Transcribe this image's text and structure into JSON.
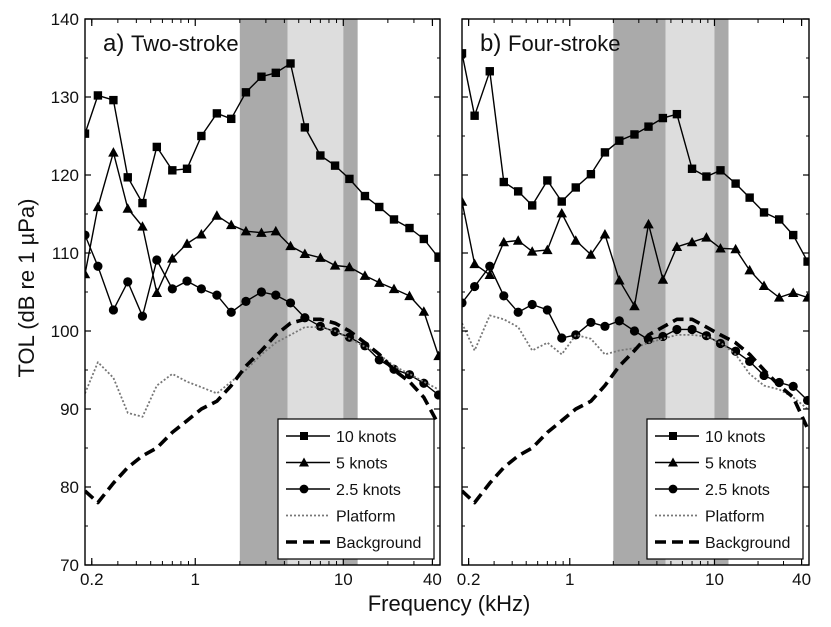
{
  "figure": {
    "ylabel": "TOL (dB re 1 µPa)",
    "xlabel": "Frequency (kHz)"
  },
  "colors": {
    "band_dark": "#aaaaaa",
    "band_light": "#dddddd",
    "line": "#000000",
    "platform": "#777777"
  },
  "chart_data": [
    {
      "type": "line",
      "panel_label": "a)",
      "title": "Two-stroke",
      "xscale": "log",
      "xlim": [
        0.18,
        45
      ],
      "ylim": [
        70,
        140
      ],
      "xticks": [
        0.2,
        1,
        10,
        40
      ],
      "xtick_labels": [
        "0.2",
        "1",
        "10",
        "40"
      ],
      "yticks": [
        70,
        80,
        90,
        100,
        110,
        120,
        130,
        140
      ],
      "ytick_labels": [
        "70",
        "80",
        "90",
        "100",
        "110",
        "120",
        "130",
        "140"
      ],
      "bands": [
        {
          "x": [
            2,
            4.2
          ],
          "shade": "dark"
        },
        {
          "x": [
            4.2,
            10
          ],
          "shade": "light"
        },
        {
          "x": [
            10,
            12.5
          ],
          "shade": "dark"
        }
      ],
      "legend_position": "lower-right",
      "series": [
        {
          "name": "10 knots",
          "marker": "square",
          "style": "solid",
          "x": [
            0.18,
            0.22,
            0.28,
            0.35,
            0.44,
            0.55,
            0.7,
            0.88,
            1.1,
            1.4,
            1.75,
            2.2,
            2.8,
            3.5,
            4.4,
            5.5,
            7,
            8.8,
            11,
            14,
            17.5,
            22,
            28,
            35,
            44
          ],
          "y": [
            125.3,
            130.2,
            129.6,
            119.7,
            116.4,
            123.6,
            120.6,
            120.8,
            125,
            127.9,
            127.2,
            130.6,
            132.6,
            133.1,
            134.3,
            126.1,
            122.5,
            121.2,
            119.5,
            117.3,
            115.9,
            114.3,
            113.2,
            111.8,
            109.4
          ]
        },
        {
          "name": "5 knots",
          "marker": "triangle",
          "style": "solid",
          "x": [
            0.18,
            0.22,
            0.28,
            0.35,
            0.44,
            0.55,
            0.7,
            0.88,
            1.1,
            1.4,
            1.75,
            2.2,
            2.8,
            3.5,
            4.4,
            5.5,
            7,
            8.8,
            11,
            14,
            17.5,
            22,
            28,
            35,
            44
          ],
          "y": [
            107.3,
            115.9,
            122.9,
            115.7,
            113.4,
            104.9,
            109.3,
            111.2,
            112.4,
            114.8,
            113.6,
            112.8,
            112.6,
            112.8,
            110.9,
            109.9,
            109.4,
            108.4,
            108.2,
            107.1,
            106.2,
            105.4,
            104.5,
            102.5,
            96.8
          ]
        },
        {
          "name": "2.5 knots",
          "marker": "circle",
          "style": "solid",
          "x": [
            0.18,
            0.22,
            0.28,
            0.35,
            0.44,
            0.55,
            0.7,
            0.88,
            1.1,
            1.4,
            1.75,
            2.2,
            2.8,
            3.5,
            4.4,
            5.5,
            7,
            8.8,
            11,
            14,
            17.5,
            22,
            28,
            35,
            44
          ],
          "y": [
            112.3,
            108.3,
            102.7,
            106.3,
            101.9,
            109.1,
            105.4,
            106.4,
            105.4,
            104.6,
            102.4,
            103.8,
            105,
            104.6,
            103.6,
            101.7,
            100.6,
            99.9,
            99.2,
            98.1,
            96.3,
            95.1,
            94.4,
            93.3,
            91.8
          ]
        },
        {
          "name": "Platform",
          "marker": "none",
          "style": "dotted",
          "x": [
            0.18,
            0.22,
            0.28,
            0.35,
            0.44,
            0.55,
            0.7,
            0.88,
            1.1,
            1.4,
            1.75,
            2.2,
            2.8,
            3.5,
            4.4,
            5.5,
            7,
            8.8,
            11,
            14,
            17.5,
            22,
            28,
            35,
            44
          ],
          "y": [
            92,
            96,
            94,
            89.5,
            89,
            93,
            94.5,
            93.5,
            92.8,
            92,
            93.5,
            95,
            97,
            98.5,
            99.5,
            100.5,
            100.5,
            100,
            99,
            98,
            97,
            95.5,
            94.5,
            93.5,
            92.5
          ]
        },
        {
          "name": "Background",
          "marker": "none",
          "style": "dashed",
          "x": [
            0.18,
            0.22,
            0.28,
            0.35,
            0.44,
            0.55,
            0.7,
            0.88,
            1.1,
            1.4,
            1.75,
            2.2,
            2.8,
            3.5,
            4.4,
            5.5,
            7,
            8.8,
            11,
            14,
            17.5,
            22,
            28,
            35,
            44
          ],
          "y": [
            79.5,
            78,
            80.5,
            82.5,
            84,
            85,
            87,
            88.5,
            90,
            91,
            93,
            95.5,
            97.5,
            99.5,
            101,
            101.5,
            101.5,
            101,
            100,
            98.5,
            97,
            95,
            93.5,
            91.5,
            88
          ]
        }
      ]
    },
    {
      "type": "line",
      "panel_label": "b)",
      "title": "Four-stroke",
      "xscale": "log",
      "xlim": [
        0.18,
        45
      ],
      "ylim": [
        70,
        140
      ],
      "xticks": [
        0.2,
        1,
        10,
        40
      ],
      "xtick_labels": [
        "0.2",
        "1",
        "10",
        "40"
      ],
      "yticks": [
        70,
        80,
        90,
        100,
        110,
        120,
        130,
        140
      ],
      "ytick_labels": [],
      "bands": [
        {
          "x": [
            2,
            4.6
          ],
          "shade": "dark"
        },
        {
          "x": [
            4.6,
            10
          ],
          "shade": "light"
        },
        {
          "x": [
            10,
            12.5
          ],
          "shade": "dark"
        }
      ],
      "legend_position": "lower-right",
      "series": [
        {
          "name": "10 knots",
          "marker": "square",
          "style": "solid",
          "x": [
            0.18,
            0.22,
            0.28,
            0.35,
            0.44,
            0.55,
            0.7,
            0.88,
            1.1,
            1.4,
            1.75,
            2.2,
            2.8,
            3.5,
            4.4,
            5.5,
            7,
            8.8,
            11,
            14,
            17.5,
            22,
            28,
            35,
            44
          ],
          "y": [
            135.6,
            127.6,
            133.3,
            119.1,
            117.9,
            116.1,
            119.3,
            116.6,
            118.4,
            120.1,
            122.9,
            124.4,
            125.2,
            126.2,
            127.3,
            127.8,
            120.8,
            119.8,
            120.6,
            118.9,
            117.1,
            115.2,
            114.3,
            112.3,
            108.9
          ]
        },
        {
          "name": "5 knots",
          "marker": "triangle",
          "style": "solid",
          "x": [
            0.18,
            0.22,
            0.28,
            0.35,
            0.44,
            0.55,
            0.7,
            0.88,
            1.1,
            1.4,
            1.75,
            2.2,
            2.8,
            3.5,
            4.4,
            5.5,
            7,
            8.8,
            11,
            14,
            17.5,
            22,
            28,
            35,
            44
          ],
          "y": [
            116.6,
            108.6,
            107.2,
            111.4,
            111.6,
            110.2,
            110.4,
            115.1,
            111.6,
            109.8,
            112.4,
            106.5,
            103.2,
            113.7,
            106.6,
            110.8,
            111.4,
            112,
            110.6,
            110.5,
            107.8,
            105.8,
            104.3,
            104.9,
            104.3
          ]
        },
        {
          "name": "2.5 knots",
          "marker": "circle",
          "style": "solid",
          "x": [
            0.18,
            0.22,
            0.28,
            0.35,
            0.44,
            0.55,
            0.7,
            0.88,
            1.1,
            1.4,
            1.75,
            2.2,
            2.8,
            3.5,
            4.4,
            5.5,
            7,
            8.8,
            11,
            14,
            17.5,
            22,
            28,
            35,
            44
          ],
          "y": [
            103.6,
            105.7,
            108.3,
            104.5,
            102.4,
            103.4,
            102.7,
            99.1,
            99.5,
            101.1,
            100.6,
            101.3,
            100,
            98.9,
            99.3,
            100.2,
            100.2,
            99.4,
            98.4,
            97.4,
            96.1,
            94.3,
            93.4,
            92.9,
            91.1
          ]
        },
        {
          "name": "Platform",
          "marker": "none",
          "style": "dotted",
          "x": [
            0.18,
            0.22,
            0.28,
            0.35,
            0.44,
            0.55,
            0.7,
            0.88,
            1.1,
            1.4,
            1.75,
            2.2,
            2.8,
            3.5,
            4.4,
            5.5,
            7,
            8.8,
            11,
            14,
            17.5,
            22,
            28,
            35,
            44
          ],
          "y": [
            101,
            97.5,
            102,
            101.5,
            100.5,
            97.5,
            98.5,
            97,
            99.5,
            99,
            97,
            97.5,
            97.8,
            98.5,
            99,
            99.5,
            99.5,
            99.3,
            98.5,
            97,
            94.5,
            93,
            92.5,
            91.5,
            90
          ]
        },
        {
          "name": "Background",
          "marker": "none",
          "style": "dashed",
          "x": [
            0.18,
            0.22,
            0.28,
            0.35,
            0.44,
            0.55,
            0.7,
            0.88,
            1.1,
            1.4,
            1.75,
            2.2,
            2.8,
            3.5,
            4.4,
            5.5,
            7,
            8.8,
            11,
            14,
            17.5,
            22,
            28,
            35,
            44
          ],
          "y": [
            79.5,
            78,
            80.5,
            82.5,
            84,
            85,
            87,
            88.5,
            90,
            91,
            93,
            95.5,
            97.5,
            99.5,
            100.5,
            101.5,
            101.5,
            100.5,
            99.5,
            98.5,
            97,
            95,
            93,
            91.5,
            87.5
          ]
        }
      ]
    }
  ]
}
